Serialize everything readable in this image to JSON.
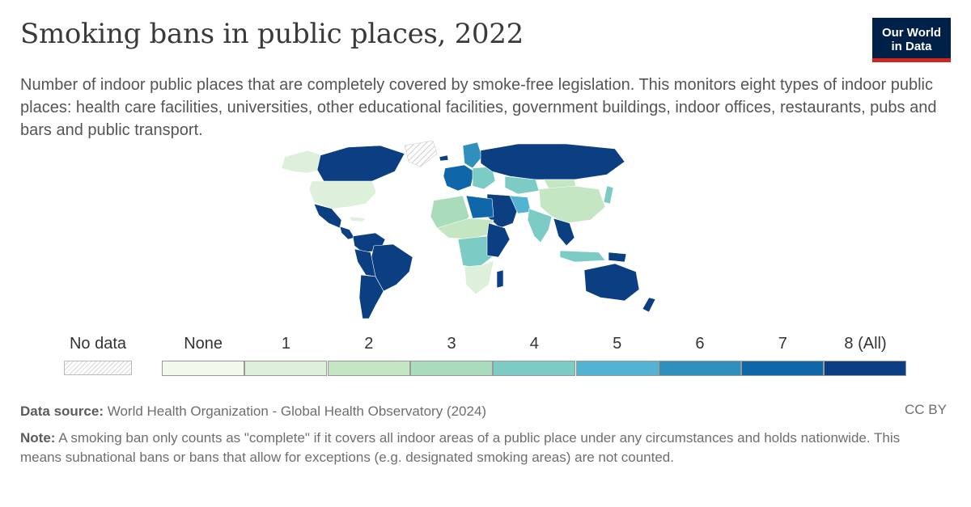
{
  "title": "Smoking bans in public places, 2022",
  "logo": {
    "line1": "Our World",
    "line2": "in Data"
  },
  "subtitle": "Number of indoor public places that are completely covered by smoke-free legislation. This monitors eight types of indoor public places: health care facilities, universities, other educational facilities, government buildings, indoor offices, restaurants, pubs and bars and public transport.",
  "legend": {
    "nodata_label": "No data",
    "bins": [
      {
        "label": "None",
        "color": "#f2f9ec"
      },
      {
        "label": "1",
        "color": "#ddf0d9"
      },
      {
        "label": "2",
        "color": "#c4e6c2"
      },
      {
        "label": "3",
        "color": "#a8dcbb"
      },
      {
        "label": "4",
        "color": "#7ccbc4"
      },
      {
        "label": "5",
        "color": "#52b4d2"
      },
      {
        "label": "6",
        "color": "#2f90be"
      },
      {
        "label": "7",
        "color": "#0f66a8"
      },
      {
        "label": "8 (All)",
        "color": "#0b3f82"
      }
    ]
  },
  "source": {
    "label": "Data source:",
    "text": "World Health Organization - Global Health Observatory (2024)"
  },
  "license": "CC BY",
  "note": {
    "label": "Note:",
    "text": "A smoking ban only counts as \"complete\" if it covers all indoor areas of a public place under any circumstances and holds nationwide. This means subnational bans or bans that allow for exceptions (e.g. designated smoking areas) are not counted."
  },
  "map_regions": [
    {
      "name": "Alaska",
      "bin": 1
    },
    {
      "name": "Canada",
      "bin": 8
    },
    {
      "name": "Greenland",
      "bin": -1
    },
    {
      "name": "United States",
      "bin": 1
    },
    {
      "name": "Mexico",
      "bin": 8
    },
    {
      "name": "Central America",
      "bin": 8
    },
    {
      "name": "Cuba",
      "bin": 1
    },
    {
      "name": "Colombia & Venezuela",
      "bin": 8
    },
    {
      "name": "Brazil",
      "bin": 8
    },
    {
      "name": "Peru & Bolivia",
      "bin": 8
    },
    {
      "name": "Argentina & Chile",
      "bin": 8
    },
    {
      "name": "Iceland",
      "bin": 8
    },
    {
      "name": "Scandinavia",
      "bin": 6
    },
    {
      "name": "Western Europe",
      "bin": 7
    },
    {
      "name": "Eastern Europe",
      "bin": 4
    },
    {
      "name": "Russia",
      "bin": 8
    },
    {
      "name": "Kazakhstan",
      "bin": 4
    },
    {
      "name": "Mongolia",
      "bin": 2
    },
    {
      "name": "China",
      "bin": 2
    },
    {
      "name": "Middle East",
      "bin": 8
    },
    {
      "name": "Iran",
      "bin": 5
    },
    {
      "name": "India",
      "bin": 4
    },
    {
      "name": "South-East Asia",
      "bin": 8
    },
    {
      "name": "Japan",
      "bin": 4
    },
    {
      "name": "Indonesia",
      "bin": 4
    },
    {
      "name": "Papua New Guinea",
      "bin": 8
    },
    {
      "name": "Australia",
      "bin": 8
    },
    {
      "name": "New Zealand",
      "bin": 8
    },
    {
      "name": "North-West Africa",
      "bin": 3
    },
    {
      "name": "Egypt & Libya",
      "bin": 7
    },
    {
      "name": "Sahel",
      "bin": 2
    },
    {
      "name": "Central Africa",
      "bin": 4
    },
    {
      "name": "East Africa",
      "bin": 8
    },
    {
      "name": "Southern Africa",
      "bin": 1
    },
    {
      "name": "Madagascar",
      "bin": 8
    }
  ]
}
